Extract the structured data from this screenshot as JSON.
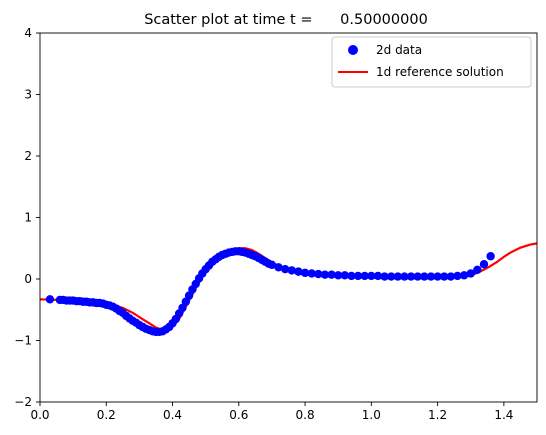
{
  "chart_data": {
    "type": "scatter",
    "title": "Scatter plot at time t =      0.50000000",
    "xlabel": "",
    "ylabel": "",
    "xlim": [
      0.0,
      1.5
    ],
    "ylim": [
      -2,
      4
    ],
    "xticks": [
      "0.0",
      "0.2",
      "0.4",
      "0.6",
      "0.8",
      "1.0",
      "1.2",
      "1.4"
    ],
    "yticks": [
      "−2",
      "−1",
      "0",
      "1",
      "2",
      "3",
      "4"
    ],
    "grid": false,
    "legend_position": "upper right",
    "series": [
      {
        "name": "2d data",
        "kind": "scatter",
        "color": "#0000ff",
        "x": [
          0.03,
          0.06,
          0.07,
          0.08,
          0.09,
          0.1,
          0.11,
          0.12,
          0.13,
          0.14,
          0.15,
          0.16,
          0.17,
          0.18,
          0.19,
          0.2,
          0.21,
          0.22,
          0.23,
          0.24,
          0.25,
          0.26,
          0.27,
          0.28,
          0.29,
          0.3,
          0.31,
          0.32,
          0.33,
          0.34,
          0.35,
          0.36,
          0.37,
          0.38,
          0.39,
          0.4,
          0.41,
          0.42,
          0.43,
          0.44,
          0.45,
          0.46,
          0.47,
          0.48,
          0.49,
          0.5,
          0.51,
          0.52,
          0.53,
          0.54,
          0.55,
          0.56,
          0.57,
          0.58,
          0.59,
          0.6,
          0.61,
          0.62,
          0.63,
          0.64,
          0.65,
          0.66,
          0.67,
          0.68,
          0.69,
          0.7,
          0.72,
          0.74,
          0.76,
          0.78,
          0.8,
          0.82,
          0.84,
          0.86,
          0.88,
          0.9,
          0.92,
          0.94,
          0.96,
          0.98,
          1.0,
          1.02,
          1.04,
          1.06,
          1.08,
          1.1,
          1.12,
          1.14,
          1.16,
          1.18,
          1.2,
          1.22,
          1.24,
          1.26,
          1.28,
          1.3,
          1.32,
          1.34,
          1.36
        ],
        "y": [
          -0.33,
          -0.34,
          -0.34,
          -0.35,
          -0.35,
          -0.35,
          -0.36,
          -0.36,
          -0.37,
          -0.37,
          -0.38,
          -0.38,
          -0.39,
          -0.39,
          -0.4,
          -0.42,
          -0.43,
          -0.45,
          -0.48,
          -0.52,
          -0.55,
          -0.6,
          -0.64,
          -0.68,
          -0.71,
          -0.75,
          -0.78,
          -0.81,
          -0.83,
          -0.85,
          -0.86,
          -0.86,
          -0.85,
          -0.82,
          -0.78,
          -0.72,
          -0.65,
          -0.56,
          -0.47,
          -0.37,
          -0.27,
          -0.17,
          -0.08,
          0.01,
          0.09,
          0.16,
          0.22,
          0.28,
          0.32,
          0.36,
          0.39,
          0.41,
          0.43,
          0.44,
          0.45,
          0.45,
          0.44,
          0.43,
          0.41,
          0.39,
          0.37,
          0.34,
          0.31,
          0.28,
          0.25,
          0.23,
          0.19,
          0.16,
          0.14,
          0.12,
          0.1,
          0.09,
          0.08,
          0.07,
          0.07,
          0.06,
          0.06,
          0.05,
          0.05,
          0.05,
          0.05,
          0.05,
          0.04,
          0.04,
          0.04,
          0.04,
          0.04,
          0.04,
          0.04,
          0.04,
          0.04,
          0.04,
          0.04,
          0.05,
          0.06,
          0.09,
          0.15,
          0.24,
          0.37
        ]
      },
      {
        "name": "1d reference solution",
        "kind": "line",
        "color": "#ff0000",
        "x": [
          0.0,
          0.05,
          0.1,
          0.15,
          0.2,
          0.22,
          0.25,
          0.28,
          0.3,
          0.33,
          0.35,
          0.37,
          0.38,
          0.39,
          0.4,
          0.42,
          0.44,
          0.46,
          0.48,
          0.5,
          0.52,
          0.54,
          0.56,
          0.58,
          0.6,
          0.62,
          0.64,
          0.66,
          0.68,
          0.7,
          0.72,
          0.75,
          0.8,
          0.85,
          0.9,
          1.0,
          1.1,
          1.2,
          1.25,
          1.28,
          1.3,
          1.32,
          1.35,
          1.38,
          1.4,
          1.42,
          1.45,
          1.48,
          1.5
        ],
        "y": [
          -0.33,
          -0.34,
          -0.35,
          -0.37,
          -0.4,
          -0.42,
          -0.47,
          -0.55,
          -0.62,
          -0.72,
          -0.79,
          -0.83,
          -0.84,
          -0.82,
          -0.78,
          -0.65,
          -0.45,
          -0.25,
          -0.05,
          0.12,
          0.25,
          0.35,
          0.42,
          0.47,
          0.5,
          0.5,
          0.47,
          0.41,
          0.34,
          0.27,
          0.21,
          0.15,
          0.09,
          0.06,
          0.04,
          0.02,
          0.01,
          0.01,
          0.02,
          0.04,
          0.06,
          0.1,
          0.18,
          0.28,
          0.36,
          0.43,
          0.51,
          0.56,
          0.58
        ]
      }
    ]
  }
}
